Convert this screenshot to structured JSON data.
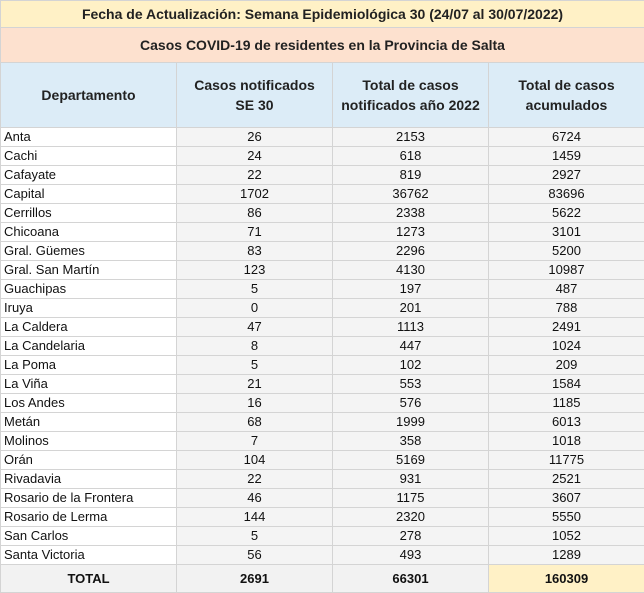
{
  "header": {
    "update_line": "Fecha de Actualización: Semana Epidemiológica 30 (24/07 al 30/07/2022)",
    "subtitle": "Casos COVID-19 de residentes en la Provincia de Salta"
  },
  "colors": {
    "title_bg": "#fff1c6",
    "subtitle_bg": "#fde1cf",
    "header_bg": "#dcecf7",
    "total_highlight": "#fff1c6"
  },
  "chart_data": {
    "type": "table",
    "title": "Casos COVID-19 de residentes en la Provincia de Salta",
    "columns": [
      "Departamento",
      "Casos notificados SE 30",
      "Total de casos notificados año 2022",
      "Total de casos acumulados"
    ],
    "rows": [
      [
        "Anta",
        26,
        2153,
        6724
      ],
      [
        "Cachi",
        24,
        618,
        1459
      ],
      [
        "Cafayate",
        22,
        819,
        2927
      ],
      [
        "Capital",
        1702,
        36762,
        83696
      ],
      [
        "Cerrillos",
        86,
        2338,
        5622
      ],
      [
        "Chicoana",
        71,
        1273,
        3101
      ],
      [
        "Gral. Güemes",
        83,
        2296,
        5200
      ],
      [
        "Gral. San Martín",
        123,
        4130,
        10987
      ],
      [
        "Guachipas",
        5,
        197,
        487
      ],
      [
        "Iruya",
        0,
        201,
        788
      ],
      [
        "La Caldera",
        47,
        1113,
        2491
      ],
      [
        "La Candelaria",
        8,
        447,
        1024
      ],
      [
        "La Poma",
        5,
        102,
        209
      ],
      [
        "La Viña",
        21,
        553,
        1584
      ],
      [
        "Los Andes",
        16,
        576,
        1185
      ],
      [
        "Metán",
        68,
        1999,
        6013
      ],
      [
        "Molinos",
        7,
        358,
        1018
      ],
      [
        "Orán",
        104,
        5169,
        11775
      ],
      [
        "Rivadavia",
        22,
        931,
        2521
      ],
      [
        "Rosario de la Frontera",
        46,
        1175,
        3607
      ],
      [
        "Rosario de Lerma",
        144,
        2320,
        5550
      ],
      [
        "San Carlos",
        5,
        278,
        1052
      ],
      [
        "Santa Victoria",
        56,
        493,
        1289
      ]
    ],
    "total": [
      "TOTAL",
      2691,
      66301,
      160309
    ]
  }
}
